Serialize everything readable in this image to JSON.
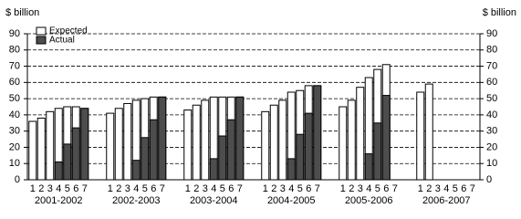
{
  "chart_data": {
    "type": "bar",
    "ylabel": "$ billion",
    "y2label": "$ billion",
    "groups": [
      "2001-2002",
      "2002-2003",
      "2003-2004",
      "2004-2005",
      "2005-2006",
      "2006-2007"
    ],
    "categories": [
      "1",
      "2",
      "3",
      "4",
      "5",
      "6",
      "7",
      "1",
      "2",
      "3",
      "4",
      "5",
      "6",
      "7",
      "1",
      "2",
      "3",
      "4",
      "5",
      "6",
      "7",
      "1",
      "2",
      "3",
      "4",
      "5",
      "6",
      "7",
      "1",
      "2",
      "3",
      "4",
      "5",
      "6",
      "7",
      "1",
      "2",
      "3",
      "4",
      "5",
      "6",
      "7"
    ],
    "series": [
      {
        "name": "Expected",
        "color": "#ffffff",
        "values": [
          36,
          38,
          42,
          44,
          45,
          45,
          44,
          41,
          44,
          47,
          49,
          50,
          51,
          51,
          43,
          46,
          49,
          51,
          51,
          51,
          51,
          42,
          46,
          49,
          54,
          55,
          58,
          58,
          45,
          49,
          57,
          63,
          68,
          71,
          null,
          54,
          59,
          null,
          null,
          null,
          null,
          null
        ]
      },
      {
        "name": "Actual",
        "color": "#4d4d4d",
        "values": [
          null,
          null,
          null,
          11,
          22,
          32,
          44,
          null,
          null,
          null,
          12,
          26,
          37,
          51,
          null,
          null,
          null,
          13,
          27,
          37,
          51,
          null,
          null,
          null,
          13,
          28,
          41,
          58,
          null,
          null,
          null,
          16,
          35,
          52,
          null,
          null,
          null,
          null,
          null,
          null,
          null,
          null
        ]
      }
    ],
    "ylim": [
      0,
      90
    ],
    "yticks": [
      0,
      10,
      20,
      30,
      40,
      50,
      60,
      70,
      80,
      90
    ],
    "y2lim": [
      0,
      90
    ],
    "y2ticks": [
      0,
      10,
      20,
      30,
      40,
      50,
      60,
      70,
      80,
      90
    ],
    "grid": true
  }
}
